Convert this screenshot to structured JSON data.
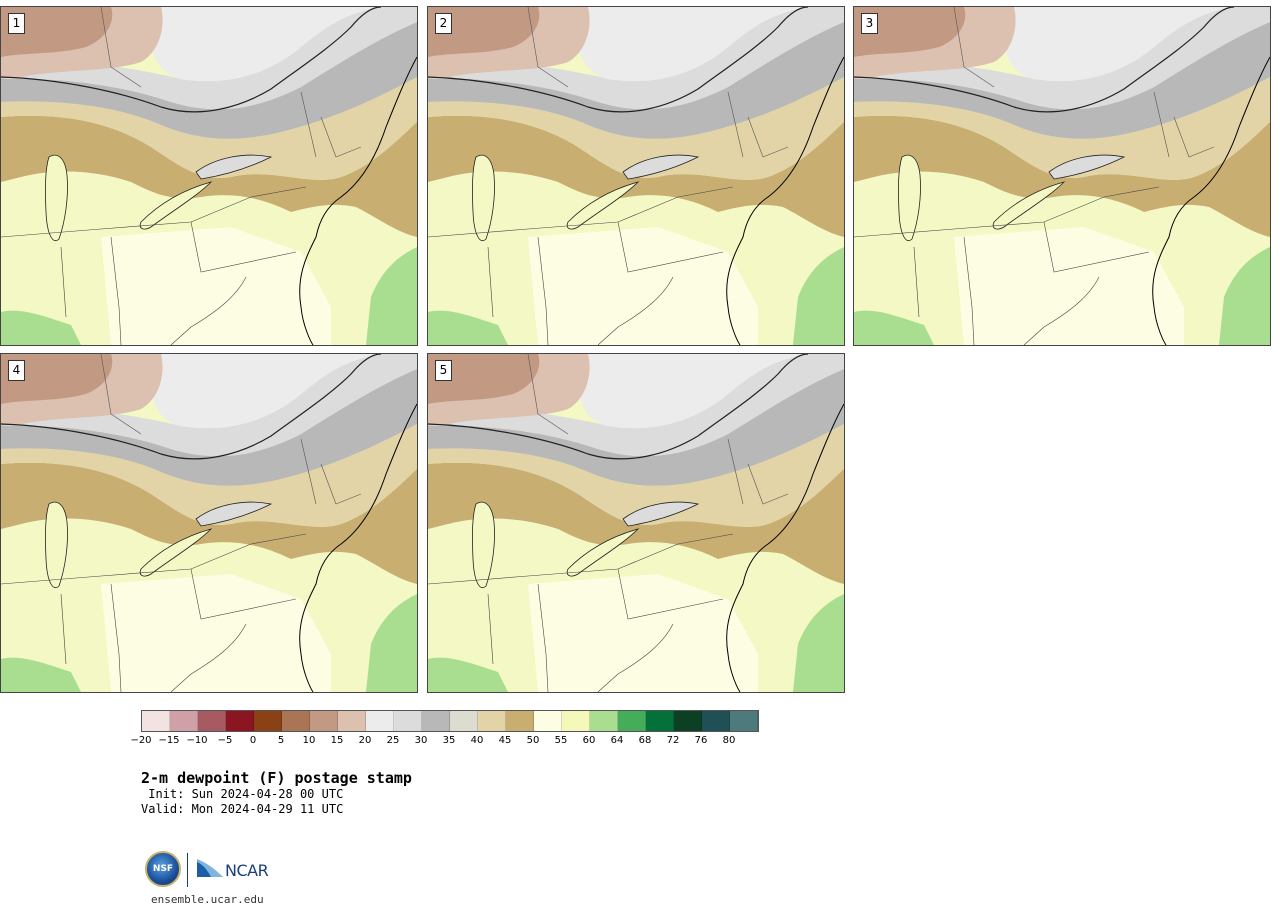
{
  "members": [
    {
      "label": "1"
    },
    {
      "label": "2"
    },
    {
      "label": "3"
    },
    {
      "label": "4"
    },
    {
      "label": "5"
    }
  ],
  "title": "2-m dewpoint (F) postage stamp",
  "init_line": " Init: Sun 2024-04-28 00 UTC",
  "valid_line": "Valid: Mon 2024-04-29 11 UTC",
  "colorbar": {
    "ticks": [
      "−20",
      "−15",
      "−10",
      "−5",
      "0",
      "5",
      "10",
      "15",
      "20",
      "25",
      "30",
      "35",
      "40",
      "45",
      "50",
      "55",
      "60",
      "64",
      "68",
      "72",
      "76",
      "80"
    ],
    "colors": [
      "#f2e2e2",
      "#cfa0a5",
      "#a85a63",
      "#8b1520",
      "#8a4215",
      "#a97555",
      "#c29a83",
      "#dcc0b0",
      "#ececec",
      "#dcdcdc",
      "#b8b8b8",
      "#dcdcd0",
      "#e2d4a6",
      "#c9ae72",
      "#fdfde3",
      "#f4f8b8",
      "#a9dd8f",
      "#45ad5a",
      "#04703a",
      "#0d3f24",
      "#1f5056",
      "#4e7a7c"
    ]
  },
  "logo": {
    "nsf_text": "NSF",
    "ncar_text": "NCAR"
  },
  "url": "ensemble.ucar.edu"
}
